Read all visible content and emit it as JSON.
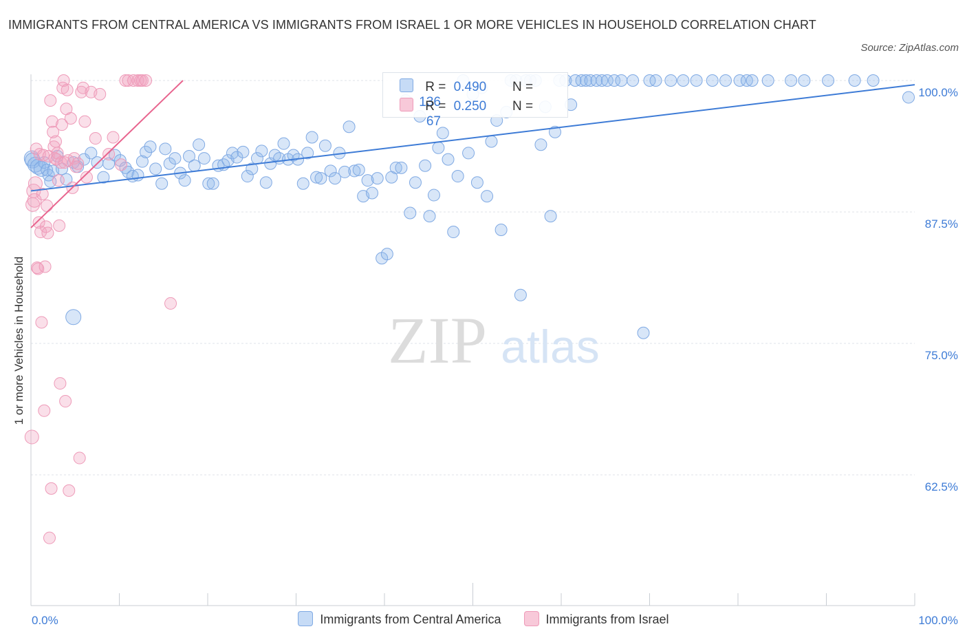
{
  "title": "IMMIGRANTS FROM CENTRAL AMERICA VS IMMIGRANTS FROM ISRAEL 1 OR MORE VEHICLES IN HOUSEHOLD CORRELATION CHART",
  "source": "Source: ZipAtlas.com",
  "watermark": {
    "zip": "ZIP",
    "atlas": "atlas"
  },
  "colors": {
    "blue": "#8fb6ea",
    "blue_line": "#3d7bd6",
    "pink": "#f2a3bf",
    "pink_line": "#e8648e",
    "axis_text": "#3d7bd6"
  },
  "legend": {
    "series": [
      {
        "r_label": "R =",
        "r_value": "0.490",
        "n_label": "N =",
        "n_value": "136"
      },
      {
        "r_label": "R =",
        "r_value": "0.250",
        "n_label": "N =",
        "n_value": "67"
      }
    ]
  },
  "chart_data": {
    "type": "scatter",
    "title": "IMMIGRANTS FROM CENTRAL AMERICA VS IMMIGRANTS FROM ISRAEL 1 OR MORE VEHICLES IN HOUSEHOLD CORRELATION CHART",
    "xlabel": "",
    "ylabel": "1 or more Vehicles in Household",
    "xlim": [
      0,
      100
    ],
    "ylim": [
      50,
      100
    ],
    "x_tick_labels": [
      "0.0%",
      "100.0%"
    ],
    "y_ticks": [
      62.5,
      75.0,
      87.5,
      100.0
    ],
    "y_tick_labels": [
      "62.5%",
      "75.0%",
      "87.5%",
      "100.0%"
    ],
    "grid": true,
    "legend_position": "top-center",
    "series": [
      {
        "name": "Immigrants from Central America",
        "color": "#8fb6ea",
        "trend": {
          "x": [
            0,
            100
          ],
          "y": [
            89.5,
            99.6
          ]
        },
        "points": [
          [
            0.1,
            92.6
          ],
          [
            0.2,
            92.4
          ],
          [
            0.5,
            92.0
          ],
          [
            0.8,
            91.8
          ],
          [
            1.2,
            91.6
          ],
          [
            1.5,
            92.2
          ],
          [
            1.8,
            91.5
          ],
          [
            2.0,
            91.0
          ],
          [
            2.2,
            90.4
          ],
          [
            2.5,
            91.4
          ],
          [
            3.0,
            92.8
          ],
          [
            3.5,
            91.6
          ],
          [
            4.0,
            90.6
          ],
          [
            4.8,
            92.2
          ],
          [
            5.3,
            91.8
          ],
          [
            6.0,
            92.5
          ],
          [
            6.8,
            93.1
          ],
          [
            7.5,
            92.2
          ],
          [
            8.2,
            90.8
          ],
          [
            8.8,
            92.1
          ],
          [
            9.5,
            92.9
          ],
          [
            10.1,
            92.4
          ],
          [
            10.7,
            91.7
          ],
          [
            11.0,
            91.3
          ],
          [
            11.5,
            90.9
          ],
          [
            12.1,
            91.0
          ],
          [
            12.6,
            92.3
          ],
          [
            13.0,
            93.2
          ],
          [
            13.5,
            93.7
          ],
          [
            14.1,
            91.6
          ],
          [
            14.8,
            90.2
          ],
          [
            15.2,
            93.5
          ],
          [
            15.7,
            92.1
          ],
          [
            16.3,
            92.6
          ],
          [
            16.9,
            91.2
          ],
          [
            17.4,
            90.5
          ],
          [
            17.9,
            92.8
          ],
          [
            18.5,
            91.9
          ],
          [
            19.0,
            93.9
          ],
          [
            19.6,
            92.6
          ],
          [
            20.1,
            90.2
          ],
          [
            20.6,
            90.2
          ],
          [
            21.2,
            91.9
          ],
          [
            21.8,
            92.0
          ],
          [
            22.3,
            92.4
          ],
          [
            22.8,
            93.1
          ],
          [
            23.3,
            92.7
          ],
          [
            24.0,
            93.2
          ],
          [
            24.5,
            90.9
          ],
          [
            25.0,
            91.6
          ],
          [
            25.6,
            92.6
          ],
          [
            26.1,
            93.3
          ],
          [
            26.6,
            90.3
          ],
          [
            27.1,
            92.1
          ],
          [
            27.6,
            92.9
          ],
          [
            28.1,
            92.6
          ],
          [
            28.6,
            94.0
          ],
          [
            29.1,
            92.5
          ],
          [
            29.7,
            92.9
          ],
          [
            30.2,
            92.5
          ],
          [
            30.8,
            90.2
          ],
          [
            31.3,
            93.1
          ],
          [
            31.8,
            94.6
          ],
          [
            32.3,
            90.8
          ],
          [
            32.8,
            90.7
          ],
          [
            33.3,
            93.8
          ],
          [
            33.9,
            91.4
          ],
          [
            34.4,
            90.7
          ],
          [
            34.9,
            93.1
          ],
          [
            35.5,
            91.3
          ],
          [
            36.0,
            95.6
          ],
          [
            36.6,
            91.4
          ],
          [
            37.1,
            91.5
          ],
          [
            37.6,
            89.0
          ],
          [
            38.1,
            90.5
          ],
          [
            38.6,
            89.3
          ],
          [
            39.2,
            90.7
          ],
          [
            39.7,
            83.1
          ],
          [
            40.3,
            83.5
          ],
          [
            40.8,
            90.8
          ],
          [
            41.3,
            91.7
          ],
          [
            41.9,
            91.7
          ],
          [
            42.4,
            98.1
          ],
          [
            42.9,
            87.4
          ],
          [
            43.5,
            90.3
          ],
          [
            44.0,
            96.6
          ],
          [
            44.6,
            91.9
          ],
          [
            45.1,
            87.1
          ],
          [
            45.6,
            89.1
          ],
          [
            46.1,
            93.6
          ],
          [
            46.6,
            95.0
          ],
          [
            47.2,
            92.5
          ],
          [
            47.8,
            85.6
          ],
          [
            48.3,
            90.9
          ],
          [
            48.9,
            100.0
          ],
          [
            49.5,
            93.1
          ],
          [
            50.0,
            98.7
          ],
          [
            50.5,
            90.3
          ],
          [
            51.0,
            99.3
          ],
          [
            51.6,
            89.0
          ],
          [
            52.1,
            94.2
          ],
          [
            52.7,
            96.2
          ],
          [
            53.2,
            85.8
          ],
          [
            53.8,
            97.0
          ],
          [
            54.3,
            100.0
          ],
          [
            54.9,
            100.0
          ],
          [
            55.4,
            79.6
          ],
          [
            56.0,
            100.0
          ],
          [
            56.5,
            100.0
          ],
          [
            57.1,
            100.0
          ],
          [
            57.7,
            93.9
          ],
          [
            58.2,
            97.5
          ],
          [
            58.8,
            87.1
          ],
          [
            59.3,
            95.1
          ],
          [
            59.8,
            100.0
          ],
          [
            60.5,
            100.0
          ],
          [
            61.1,
            97.7
          ],
          [
            61.6,
            100.0
          ],
          [
            62.3,
            100.0
          ],
          [
            62.8,
            100.0
          ],
          [
            63.3,
            100.0
          ],
          [
            64.0,
            100.0
          ],
          [
            64.6,
            100.0
          ],
          [
            65.2,
            100.0
          ],
          [
            66.0,
            100.0
          ],
          [
            66.8,
            100.0
          ],
          [
            68.1,
            100.0
          ],
          [
            69.3,
            76.0
          ],
          [
            70.0,
            100.0
          ],
          [
            70.7,
            100.0
          ],
          [
            72.4,
            100.0
          ],
          [
            73.8,
            100.0
          ],
          [
            75.3,
            100.0
          ],
          [
            77.1,
            100.0
          ],
          [
            78.6,
            100.0
          ],
          [
            80.2,
            100.0
          ],
          [
            81.0,
            100.0
          ],
          [
            81.6,
            100.0
          ],
          [
            83.4,
            100.0
          ],
          [
            86.0,
            100.0
          ],
          [
            87.5,
            100.0
          ],
          [
            90.2,
            100.0
          ],
          [
            93.2,
            100.0
          ],
          [
            95.3,
            100.0
          ],
          [
            99.3,
            98.4
          ],
          [
            4.8,
            77.5
          ]
        ]
      },
      {
        "name": "Immigrants from Israel",
        "color": "#f2a3bf",
        "trend": {
          "x": [
            0,
            17.2
          ],
          "y": [
            86.0,
            100.0
          ]
        },
        "points": [
          [
            0.1,
            66.1
          ],
          [
            0.2,
            88.2
          ],
          [
            0.3,
            89.5
          ],
          [
            0.4,
            88.6
          ],
          [
            0.5,
            90.2
          ],
          [
            0.6,
            93.5
          ],
          [
            0.7,
            82.2
          ],
          [
            0.8,
            82.1
          ],
          [
            0.9,
            86.5
          ],
          [
            1.0,
            93.0
          ],
          [
            1.1,
            85.6
          ],
          [
            1.2,
            77.0
          ],
          [
            1.3,
            89.2
          ],
          [
            1.4,
            92.9
          ],
          [
            1.5,
            68.6
          ],
          [
            1.6,
            82.3
          ],
          [
            1.7,
            86.1
          ],
          [
            1.8,
            88.1
          ],
          [
            1.9,
            85.5
          ],
          [
            2.0,
            92.8
          ],
          [
            2.1,
            56.5
          ],
          [
            2.2,
            98.1
          ],
          [
            2.3,
            61.2
          ],
          [
            2.4,
            96.1
          ],
          [
            2.5,
            95.1
          ],
          [
            2.6,
            93.7
          ],
          [
            2.7,
            92.6
          ],
          [
            2.8,
            94.2
          ],
          [
            2.9,
            92.5
          ],
          [
            3.0,
            93.1
          ],
          [
            3.1,
            90.5
          ],
          [
            3.2,
            86.2
          ],
          [
            3.3,
            71.2
          ],
          [
            3.4,
            92.2
          ],
          [
            3.5,
            95.8
          ],
          [
            3.6,
            99.3
          ],
          [
            3.7,
            100.0
          ],
          [
            3.8,
            92.2
          ],
          [
            3.9,
            69.5
          ],
          [
            4.0,
            97.3
          ],
          [
            4.1,
            99.1
          ],
          [
            4.2,
            92.4
          ],
          [
            4.3,
            61.0
          ],
          [
            4.5,
            96.4
          ],
          [
            4.7,
            89.8
          ],
          [
            4.9,
            92.6
          ],
          [
            5.1,
            91.8
          ],
          [
            5.3,
            92.1
          ],
          [
            5.5,
            64.1
          ],
          [
            5.7,
            98.9
          ],
          [
            5.9,
            99.3
          ],
          [
            6.1,
            96.1
          ],
          [
            6.3,
            90.8
          ],
          [
            6.8,
            98.9
          ],
          [
            7.3,
            94.5
          ],
          [
            7.8,
            98.7
          ],
          [
            8.8,
            93.0
          ],
          [
            9.3,
            94.6
          ],
          [
            10.2,
            92.0
          ],
          [
            10.7,
            100.0
          ],
          [
            11.0,
            100.0
          ],
          [
            11.6,
            100.0
          ],
          [
            12.1,
            100.0
          ],
          [
            12.4,
            100.0
          ],
          [
            12.6,
            100.0
          ],
          [
            13.0,
            100.0
          ],
          [
            15.8,
            78.8
          ]
        ]
      }
    ]
  },
  "bottom_legend": {
    "series1": "Immigrants from Central America",
    "series2": "Immigrants from Israel"
  }
}
